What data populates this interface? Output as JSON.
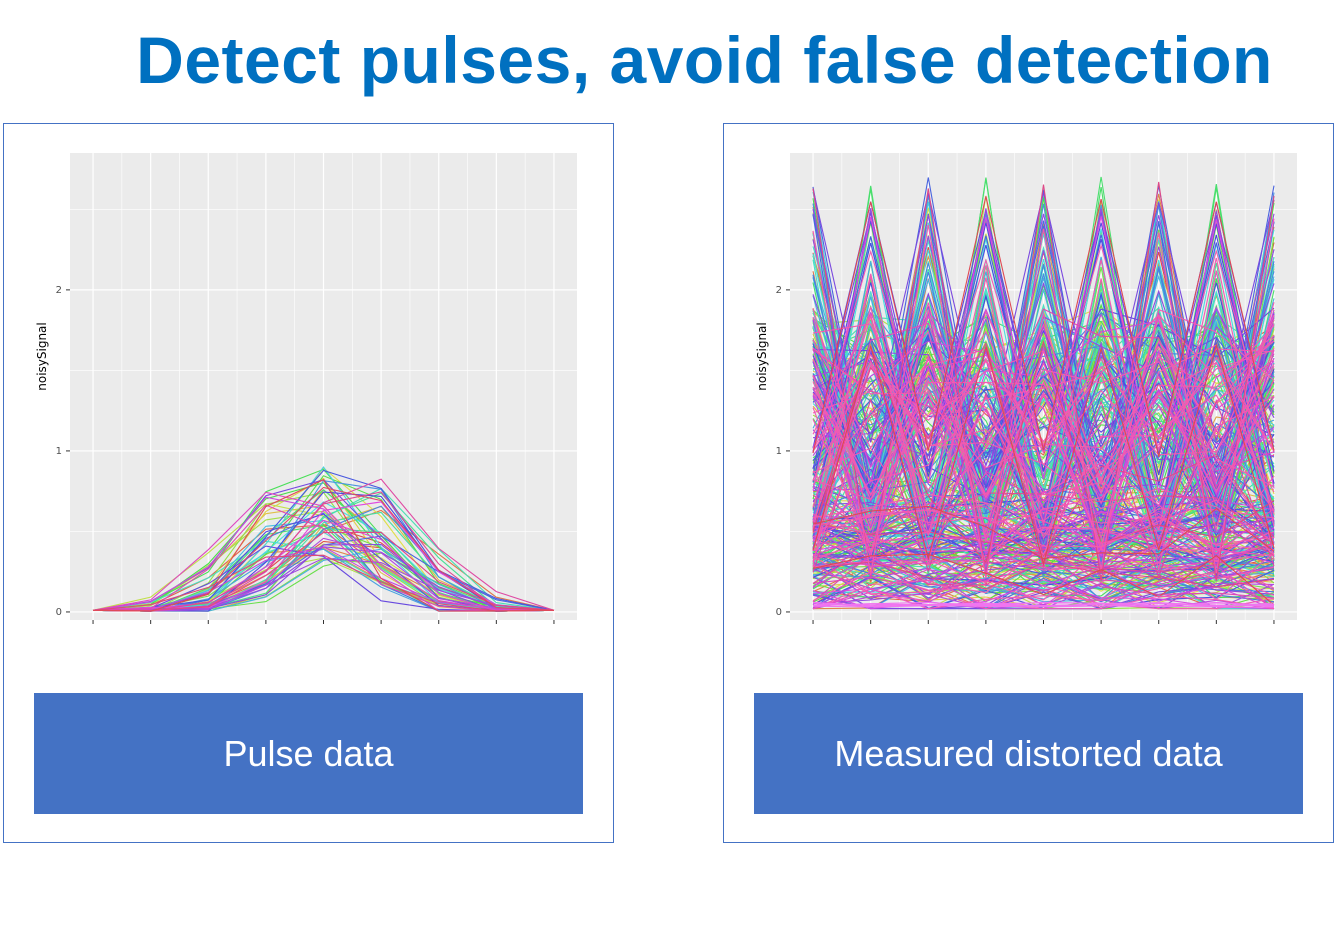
{
  "title": "Detect pulses, avoid false detection",
  "panels": [
    {
      "caption": "Pulse data",
      "ylabel": "noisySignal"
    },
    {
      "caption": "Measured distorted data",
      "ylabel": "noisySignal"
    }
  ],
  "colors": {
    "title": "#0070c0",
    "caption_bg": "#4472c4",
    "panel_border": "#4472c4",
    "plot_bg": "#ebebeb",
    "grid": "#ffffff"
  },
  "chart_data": [
    {
      "type": "line",
      "xlabel": "",
      "ylabel": "noisySignal",
      "y_ticks": [
        "0",
        "1",
        "2"
      ],
      "ylim": [
        -0.05,
        2.85
      ],
      "xlim": [
        0.6,
        9.4
      ],
      "grid": true,
      "legend": "none",
      "x": [
        1,
        2,
        3,
        4,
        5,
        6,
        7,
        8,
        9
      ],
      "series_count": 60,
      "description_of_values": "Gaussian-shaped pulses peaking near x=5 with peak heights 0.35–0.98",
      "example_series": [
        {
          "values": [
            0.01,
            0.05,
            0.3,
            0.9,
            0.65,
            0.3,
            0.08,
            0.02,
            0.01
          ]
        },
        {
          "values": [
            0.01,
            0.02,
            0.1,
            0.45,
            0.98,
            0.55,
            0.1,
            0.01,
            0.01
          ]
        },
        {
          "values": [
            0.01,
            0.01,
            0.05,
            0.3,
            0.8,
            0.97,
            0.45,
            0.05,
            0.01
          ]
        }
      ]
    },
    {
      "type": "line",
      "xlabel": "",
      "ylabel": "noisySignal",
      "y_ticks": [
        "0",
        "1",
        "2"
      ],
      "ylim": [
        -0.05,
        2.85
      ],
      "xlim": [
        0.6,
        9.4
      ],
      "grid": true,
      "legend": "none",
      "x": [
        1,
        2,
        3,
        4,
        5,
        6,
        7,
        8,
        9
      ],
      "series_count": 400,
      "description_of_values": "Dense overlapping noisy series oscillating between 0.02 and 2.7, peaks at every other point",
      "example_series": [
        {
          "values": [
            2.7,
            0.6,
            2.7,
            0.6,
            2.7,
            0.6,
            2.7,
            0.6,
            2.7
          ]
        },
        {
          "values": [
            0.05,
            0.04,
            0.05,
            0.04,
            0.06,
            0.04,
            0.05,
            0.04,
            0.05
          ]
        }
      ]
    }
  ]
}
